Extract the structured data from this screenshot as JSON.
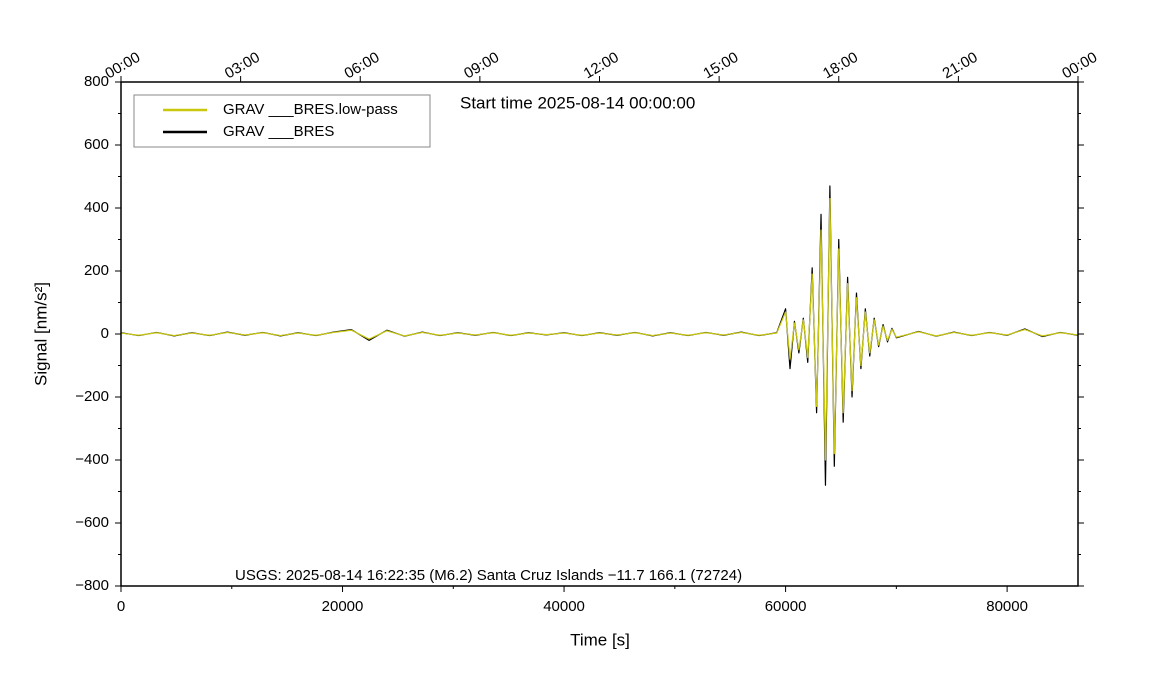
{
  "chart_data": {
    "type": "line",
    "xlabel": "Time [s]",
    "ylabel": "Signal [nm/s²]",
    "annotations": [
      "Start time 2025-08-14 00:00:00",
      "USGS: 2025-08-14 16:22:35 (M6.2) Santa Cruz Islands −11.7 166.1 (72724)"
    ],
    "legend": "upper left",
    "xlim": [
      0,
      86400
    ],
    "xticks": [
      0,
      20000,
      40000,
      60000,
      80000
    ],
    "xminorticks": [
      10000,
      30000,
      50000,
      70000
    ],
    "x2ticks": [
      {
        "value": 0,
        "label": "00:00"
      },
      {
        "value": 10800,
        "label": "03:00"
      },
      {
        "value": 21600,
        "label": "06:00"
      },
      {
        "value": 32400,
        "label": "09:00"
      },
      {
        "value": 43200,
        "label": "12:00"
      },
      {
        "value": 54000,
        "label": "15:00"
      },
      {
        "value": 64800,
        "label": "18:00"
      },
      {
        "value": 75600,
        "label": "21:00"
      },
      {
        "value": 86400,
        "label": "00:00"
      }
    ],
    "ylim": [
      -800,
      800
    ],
    "yticks": [
      {
        "value": -800,
        "label": "−800"
      },
      {
        "value": -600,
        "label": "−600"
      },
      {
        "value": -400,
        "label": "−400"
      },
      {
        "value": -200,
        "label": "−200"
      },
      0,
      200,
      400,
      600,
      800
    ],
    "yminorticks": [
      -700,
      -500,
      -300,
      -100,
      100,
      300,
      500,
      700
    ],
    "x": [
      0,
      1600,
      3200,
      4800,
      6400,
      8000,
      9600,
      11200,
      12800,
      14400,
      16000,
      17600,
      19200,
      20800,
      22400,
      24000,
      25600,
      27200,
      28800,
      30400,
      32000,
      33600,
      35200,
      36800,
      38400,
      40000,
      41600,
      43200,
      44800,
      46400,
      48000,
      49600,
      51200,
      52800,
      54400,
      56000,
      57600,
      59200,
      60000,
      60400,
      60800,
      61200,
      61600,
      62000,
      62400,
      62800,
      63200,
      63600,
      64000,
      64400,
      64800,
      65200,
      65600,
      66000,
      66400,
      66800,
      67200,
      67600,
      68000,
      68400,
      68800,
      69200,
      69600,
      70000,
      72000,
      73600,
      75200,
      76800,
      78400,
      80000,
      81600,
      83200,
      84800,
      86400
    ],
    "series": [
      {
        "name": "GRAV ___BRES.low-pass",
        "color": "#c9c80f",
        "values": [
          3,
          -4,
          4,
          -5,
          3,
          -4,
          5,
          -3,
          4,
          -5,
          3,
          -4,
          5,
          12,
          -16,
          10,
          -6,
          5,
          -4,
          3,
          -3,
          4,
          -4,
          3,
          -2,
          3,
          -4,
          3,
          -3,
          4,
          -5,
          3,
          -4,
          4,
          -3,
          5,
          -4,
          3,
          70,
          -80,
          35,
          -50,
          45,
          -75,
          190,
          -230,
          330,
          -400,
          430,
          -380,
          270,
          -250,
          160,
          -180,
          115,
          -100,
          70,
          -60,
          45,
          -35,
          25,
          -20,
          15,
          -10,
          7,
          -6,
          5,
          -4,
          4,
          -3,
          14,
          -6,
          4,
          -3
        ]
      },
      {
        "name": "GRAV ___BRES",
        "color": "#000000",
        "values": [
          4,
          -5,
          5,
          -6,
          4,
          -5,
          6,
          -4,
          5,
          -6,
          4,
          -5,
          6,
          14,
          -20,
          12,
          -7,
          6,
          -5,
          4,
          -4,
          5,
          -5,
          4,
          -3,
          4,
          -5,
          4,
          -4,
          5,
          -6,
          4,
          -5,
          5,
          -4,
          6,
          -5,
          4,
          80,
          -110,
          40,
          -60,
          50,
          -90,
          210,
          -250,
          380,
          -480,
          470,
          -420,
          300,
          -280,
          180,
          -200,
          130,
          -110,
          80,
          -70,
          50,
          -40,
          30,
          -25,
          18,
          -12,
          8,
          -7,
          6,
          -5,
          5,
          -4,
          16,
          -8,
          5,
          -4
        ]
      }
    ]
  }
}
